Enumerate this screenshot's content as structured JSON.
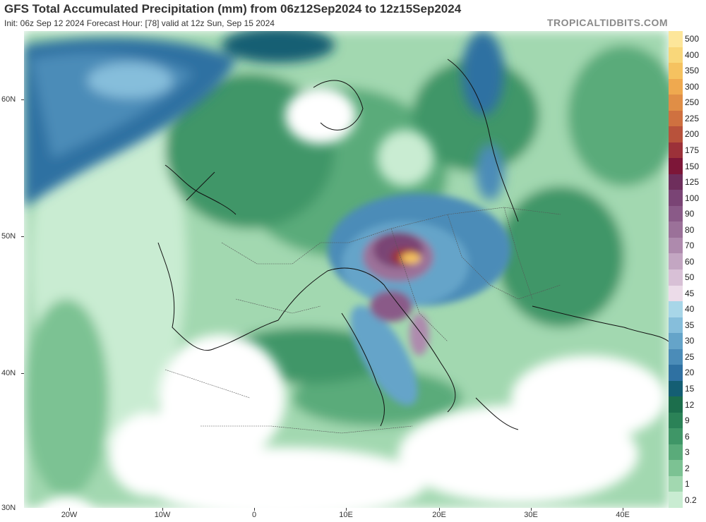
{
  "header": {
    "title": "GFS Total Accumulated Precipitation (mm) from 06z12Sep2024 to 12z15Sep2024",
    "subtitle": "Init: 06z Sep 12 2024   Forecast Hour: [78]   valid at 12z Sun, Sep 15 2024",
    "brand": "TROPICALTIDBITS.COM"
  },
  "axes": {
    "lat_labels": [
      "60N",
      "50N",
      "40N",
      "30N"
    ],
    "lon_labels": [
      "20W",
      "10W",
      "0",
      "10E",
      "20E",
      "30E",
      "40E"
    ]
  },
  "legend": {
    "levels": [
      {
        "label": "500",
        "color": "#fde69a"
      },
      {
        "label": "400",
        "color": "#f9d77a"
      },
      {
        "label": "350",
        "color": "#f5c260"
      },
      {
        "label": "300",
        "color": "#efa94f"
      },
      {
        "label": "250",
        "color": "#e08e46"
      },
      {
        "label": "225",
        "color": "#cf7140"
      },
      {
        "label": "200",
        "color": "#b8523b"
      },
      {
        "label": "175",
        "color": "#9c3139"
      },
      {
        "label": "150",
        "color": "#7d1638"
      },
      {
        "label": "125",
        "color": "#6e2e5c"
      },
      {
        "label": "100",
        "color": "#7a4475"
      },
      {
        "label": "90",
        "color": "#8a5a88"
      },
      {
        "label": "80",
        "color": "#9b7199"
      },
      {
        "label": "70",
        "color": "#ae8aad"
      },
      {
        "label": "60",
        "color": "#c3a6c2"
      },
      {
        "label": "50",
        "color": "#d8c0d6"
      },
      {
        "label": "45",
        "color": "#ecdce9"
      },
      {
        "label": "40",
        "color": "#a8d6e8"
      },
      {
        "label": "35",
        "color": "#86bedb"
      },
      {
        "label": "30",
        "color": "#65a4c9"
      },
      {
        "label": "25",
        "color": "#4b8cb8"
      },
      {
        "label": "20",
        "color": "#2f71a2"
      },
      {
        "label": "15",
        "color": "#145e73"
      },
      {
        "label": "12",
        "color": "#1c6e4c"
      },
      {
        "label": "9",
        "color": "#2b8257"
      },
      {
        "label": "6",
        "color": "#3f9667"
      },
      {
        "label": "3",
        "color": "#5aab7a"
      },
      {
        "label": "2",
        "color": "#7cc293"
      },
      {
        "label": "1",
        "color": "#a2d8b0"
      },
      {
        "label": "0.2",
        "color": "#c9ecd2"
      }
    ]
  }
}
